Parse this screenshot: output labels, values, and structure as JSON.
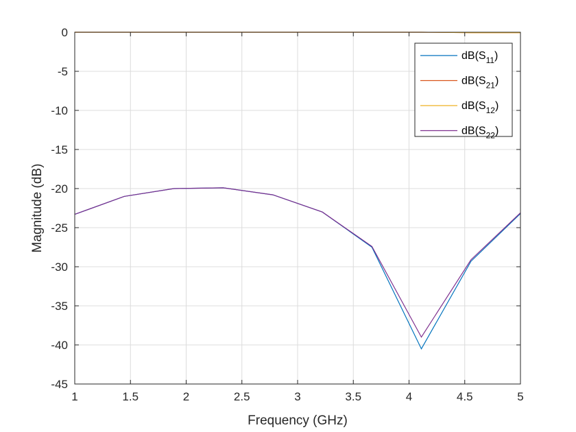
{
  "chart_data": {
    "type": "line",
    "title": "",
    "xlabel": "Frequency (GHz)",
    "ylabel": "Magnitude (dB)",
    "xlim": [
      1,
      5
    ],
    "ylim": [
      -45,
      0
    ],
    "xticks": [
      1,
      1.5,
      2,
      2.5,
      3,
      3.5,
      4,
      4.5,
      5
    ],
    "xtick_labels": [
      "1",
      "1.5",
      "2",
      "2.5",
      "3",
      "3.5",
      "4",
      "4.5",
      "5"
    ],
    "yticks": [
      0,
      -5,
      -10,
      -15,
      -20,
      -25,
      -30,
      -35,
      -40,
      -45
    ],
    "ytick_labels": [
      "0",
      "-5",
      "-10",
      "-15",
      "-20",
      "-25",
      "-30",
      "-35",
      "-40",
      "-45"
    ],
    "grid": true,
    "legend_position": "top-right",
    "x": [
      1,
      1.444,
      1.889,
      2.333,
      2.778,
      3.222,
      3.667,
      4.111,
      4.556,
      5
    ],
    "series": [
      {
        "name": "dB(S11)",
        "legend_main": "dB(S",
        "legend_sub": "11",
        "legend_tail": ")",
        "color": "#0072BD",
        "values": [
          -23.3,
          -21.0,
          -20.0,
          -19.9,
          -20.8,
          -23.0,
          -27.5,
          -40.5,
          -29.3,
          -23.2
        ]
      },
      {
        "name": "dB(S21)",
        "legend_main": "dB(S",
        "legend_sub": "21",
        "legend_tail": ")",
        "color": "#D95319",
        "values": [
          0,
          0,
          0,
          0,
          0,
          0,
          0,
          0,
          -0.05,
          -0.05
        ]
      },
      {
        "name": "dB(S12)",
        "legend_main": "dB(S",
        "legend_sub": "12",
        "legend_tail": ")",
        "color": "#EDB120",
        "values": [
          0,
          0,
          0,
          0,
          0,
          0,
          0,
          0,
          -0.05,
          -0.05
        ]
      },
      {
        "name": "dB(S22)",
        "legend_main": "dB(S",
        "legend_sub": "22",
        "legend_tail": ")",
        "color": "#7E2F8E",
        "values": [
          -23.3,
          -21.0,
          -20.0,
          -19.9,
          -20.8,
          -23.0,
          -27.4,
          -39.0,
          -29.1,
          -23.1
        ]
      }
    ]
  }
}
